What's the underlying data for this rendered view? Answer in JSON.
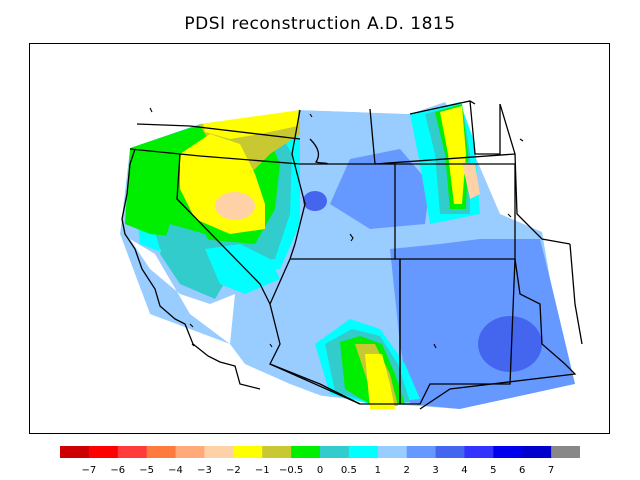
{
  "title": "PDSI reconstruction A.D. 1815",
  "legend": {
    "colors": [
      "#cc0000",
      "#ff0000",
      "#ff3b3b",
      "#ff7a3f",
      "#ffaa78",
      "#ffd1a6",
      "#ffff00",
      "#c8c832",
      "#00ee00",
      "#33cccc",
      "#00ffff",
      "#99ccff",
      "#6699ff",
      "#4466ee",
      "#3333ff",
      "#0000ee",
      "#0000cc",
      "#888888"
    ],
    "tick_labels": [
      "−7",
      "−6",
      "−5",
      "−4",
      "−3",
      "−2",
      "−1",
      "−0.5",
      "0",
      "0.5",
      "1",
      "2",
      "3",
      "4",
      "5",
      "6",
      "7"
    ]
  },
  "region_colors": {
    "ocean": "#ffffff",
    "very_dry": "#ffd1a6",
    "dry": "#ffff00",
    "moderately_dry": "#c8c832",
    "near_normal": "#00ee00",
    "slightly_wet": "#33cccc",
    "wet": "#00ffff",
    "moist": "#99ccff",
    "very_moist": "#6699ff",
    "extreme": "#4466ee"
  }
}
